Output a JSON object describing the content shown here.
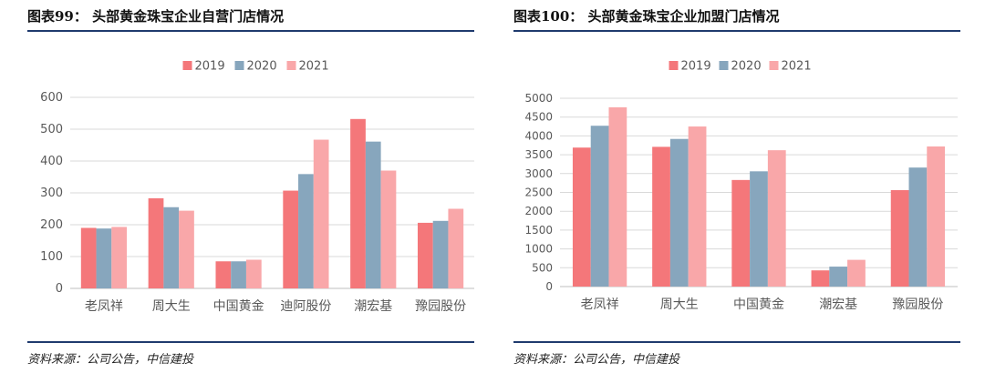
{
  "chart_data": [
    {
      "type": "bar",
      "figure_label": "图表99：",
      "title": "头部黄金珠宝企业自营门店情况",
      "categories": [
        "老凤祥",
        "周大生",
        "中国黄金",
        "迪阿股份",
        "潮宏基",
        "豫园股份"
      ],
      "series": [
        {
          "name": "2019",
          "color": "#f4777a",
          "values": [
            190,
            283,
            85,
            307,
            532,
            206
          ]
        },
        {
          "name": "2020",
          "color": "#87a6bd",
          "values": [
            188,
            255,
            85,
            359,
            461,
            212
          ]
        },
        {
          "name": "2021",
          "color": "#f9a7a9",
          "values": [
            193,
            244,
            90,
            467,
            370,
            250
          ]
        }
      ],
      "yticks": [
        0,
        100,
        200,
        300,
        400,
        500,
        600
      ],
      "ylim": [
        0,
        600
      ],
      "legend": "top-center",
      "grid": true,
      "source": "资料来源：公司公告，中信建投"
    },
    {
      "type": "bar",
      "figure_label": "图表100：",
      "title": "头部黄金珠宝企业加盟门店情况",
      "categories": [
        "老凤祥",
        "周大生",
        "中国黄金",
        "潮宏基",
        "豫园股份"
      ],
      "series": [
        {
          "name": "2019",
          "color": "#f4777a",
          "values": [
            3690,
            3710,
            2830,
            430,
            2560
          ]
        },
        {
          "name": "2020",
          "color": "#87a6bd",
          "values": [
            4270,
            3920,
            3060,
            530,
            3160
          ]
        },
        {
          "name": "2021",
          "color": "#f9a7a9",
          "values": [
            4760,
            4250,
            3620,
            710,
            3720
          ]
        }
      ],
      "yticks": [
        0,
        500,
        1000,
        1500,
        2000,
        2500,
        3000,
        3500,
        4000,
        4500,
        5000
      ],
      "ylim": [
        0,
        5000
      ],
      "legend": "top-center",
      "grid": true,
      "source": "资料来源：公司公告，中信建投"
    }
  ]
}
